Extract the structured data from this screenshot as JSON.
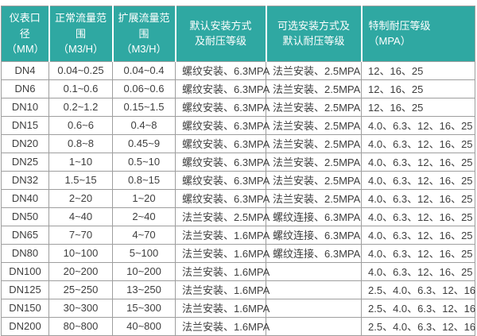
{
  "table": {
    "title": "flow-meter-specification-table",
    "header": [
      {
        "lines": [
          "仪表口径",
          "（MM）"
        ],
        "align": "center"
      },
      {
        "lines": [
          "正常流量范围",
          "（M3/H）"
        ],
        "align": "center"
      },
      {
        "lines": [
          "扩展流量范围",
          "（M3/H）"
        ],
        "align": "center"
      },
      {
        "lines": [
          "默认安装方式",
          "及耐压等级"
        ],
        "align": "center"
      },
      {
        "lines": [
          "可选安装方式及",
          "默认耐压等级"
        ],
        "align": "center"
      },
      {
        "lines": [
          "特制耐压等级",
          "（MPA）"
        ],
        "align": "left"
      }
    ],
    "column_aligns": [
      "center",
      "center",
      "center",
      "left",
      "left",
      "left"
    ],
    "rows": [
      [
        "DN4",
        "0.04~0.25",
        "0.04~0.4",
        "螺纹安装、6.3MPA",
        "法兰安装、2.5MPA",
        "12、16、25"
      ],
      [
        "DN6",
        "0.1~0.6",
        "0.06~0.6",
        "螺纹安装、6.3MPA",
        "法兰安装、2.5MPA",
        "12、16、25"
      ],
      [
        "DN10",
        "0.2~1.2",
        "0.15~1.5",
        "螺纹安装、6.3MPA",
        "法兰安装、2.5MPA",
        "12、16、25"
      ],
      [
        "DN15",
        "0.6~6",
        "0.4~8",
        "螺纹安装、6.3MPA",
        "法兰安装、2.5MPA",
        "4.0、6.3、12、16、25"
      ],
      [
        "DN20",
        "0.8~8",
        "0.45~9",
        "螺纹安装、6.3MPA",
        "法兰安装、2.5MPA",
        "4.0、6.3、12、16、25"
      ],
      [
        "DN25",
        "1~10",
        "0.5~10",
        "螺纹安装、6.3MPA",
        "法兰安装、2.5MPA",
        "4.0、6.3、12、16、25"
      ],
      [
        "DN32",
        "1.5~15",
        "0.8~15",
        "螺纹安装、6.3MPA",
        "法兰安装、2.5MPA",
        "4.0、6.3、12、16、25"
      ],
      [
        "DN40",
        "2~20",
        "1~20",
        "螺纹安装、6.3MPA",
        "法兰安装、2.5MPA",
        "4.0、6.3、12、16、25"
      ],
      [
        "DN50",
        "4~40",
        "2~40",
        "法兰安装、2.5MPA",
        "螺纹连接、6.3MPA",
        "4.0、6.3、12、16、25"
      ],
      [
        "DN65",
        "7~70",
        "4~70",
        "法兰安装、1.6MPA",
        "螺纹连接、6.3MPA",
        "4.0、6.3、12、16、25"
      ],
      [
        "DN80",
        "10~100",
        "5~100",
        "法兰安装、1.6MPA",
        "螺纹连接、6.3MPA",
        "4.0、6.3、12、16、25"
      ],
      [
        "DN100",
        "20~200",
        "10~200",
        "法兰安装、1.6MPA",
        "",
        "4.0、6.3、12、16、25"
      ],
      [
        "DN125",
        "25~250",
        "13~250",
        "法兰安装、1.6MPA",
        "",
        "2.5、4.0、6.3、12、16"
      ],
      [
        "DN150",
        "30~300",
        "15~300",
        "法兰安装、1.6MPA",
        "",
        "2.5、4.0、6.3、12、16"
      ],
      [
        "DN200",
        "80~800",
        "40~800",
        "法兰安装、1.6MPA",
        "",
        "2.5、4.0、6.3、12、16"
      ]
    ]
  },
  "colors": {
    "header_bg": "#2fa8a2",
    "header_text": "#ffffff",
    "body_text": "#3e3e3e",
    "border": "#9e9e9e",
    "background": "#ffffff"
  }
}
